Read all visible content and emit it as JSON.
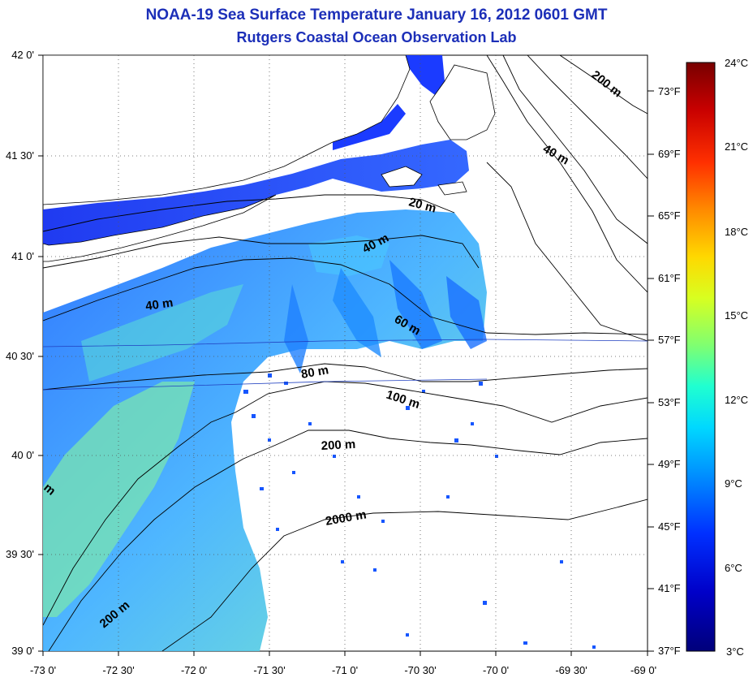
{
  "title": "NOAA-19 Sea Surface Temperature January 16, 2012 0601 GMT",
  "subtitle": "Rutgers Coastal Ocean Observation Lab",
  "map": {
    "lat_ticks": [
      "42 0'",
      "41 30'",
      "41 0'",
      "40 30'",
      "40 0'",
      "39 30'",
      "39 0'"
    ],
    "lon_ticks": [
      "-73 0'",
      "-72 30'",
      "-72 0'",
      "-71 30'",
      "-71 0'",
      "-70 30'",
      "-70 0'",
      "-69 30'",
      "-69 0'"
    ],
    "lat_range": [
      39.0,
      42.0
    ],
    "lon_range": [
      -73.0,
      -69.0
    ],
    "grid": "dotted",
    "depth_labels": [
      "200 m",
      "40 m",
      "20 m",
      "40 m",
      "40 m",
      "60 m",
      "80 m",
      "100 m",
      "200 m",
      "2000 m",
      "200 m",
      "m"
    ]
  },
  "colorbar": {
    "celsius": [
      "24°C",
      "21°C",
      "18°C",
      "15°C",
      "12°C",
      "9°C",
      "6°C",
      "3°C"
    ],
    "fahrenheit": [
      "73°F",
      "69°F",
      "65°F",
      "61°F",
      "57°F",
      "53°F",
      "49°F",
      "45°F",
      "41°F",
      "37°F"
    ],
    "colors": [
      "#800000",
      "#c00000",
      "#ff2000",
      "#ff6000",
      "#ffa000",
      "#ffe000",
      "#c0ff20",
      "#60ff80",
      "#00ffe0",
      "#00c0ff",
      "#0080ff",
      "#0030ff",
      "#0000c0",
      "#000080"
    ]
  }
}
